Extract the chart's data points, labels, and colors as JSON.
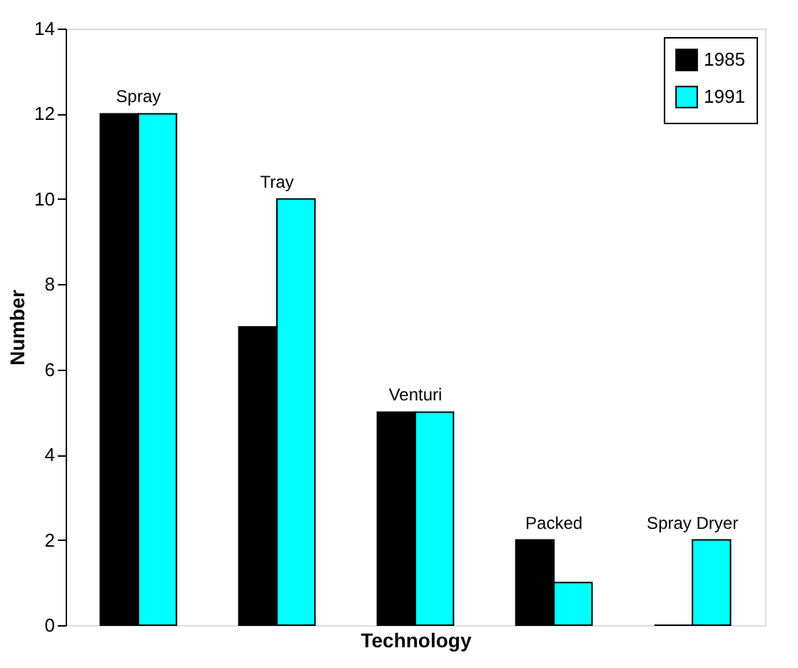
{
  "chart_data": {
    "type": "bar",
    "xlabel": "Technology",
    "ylabel": "Number",
    "categories": [
      "Spray",
      "Tray",
      "Venturi",
      "Packed",
      "Spray Dryer"
    ],
    "series": [
      {
        "name": "1985",
        "color": "#000000",
        "values": [
          12,
          7,
          5,
          2,
          0
        ]
      },
      {
        "name": "1991",
        "color": "#00ffff",
        "values": [
          12,
          10,
          5,
          1,
          2
        ]
      }
    ],
    "ylim": [
      0,
      14
    ],
    "yticks": [
      0,
      2,
      4,
      6,
      8,
      10,
      12,
      14
    ],
    "legend": "top right",
    "tick_labels": "y"
  }
}
